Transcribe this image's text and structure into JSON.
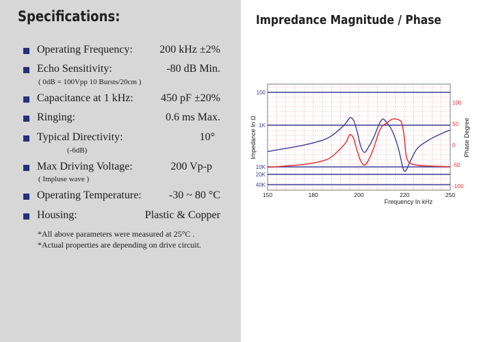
{
  "spec_title": "Specifications:",
  "specs": [
    {
      "label": "Operating Frequency:",
      "value": "200 kHz ±2%"
    },
    {
      "label": "Echo Sensitivity:",
      "value": "-80 dB Min.",
      "note": "( 0dB = 100Vpp 10 Bursts/20cm )"
    },
    {
      "label": "Capacitance at 1 kHz:",
      "value": "450 pF ±20%"
    },
    {
      "label": "Ringing:",
      "value": "0.6 ms Max."
    },
    {
      "label": "Typical Directivity:",
      "value": "10°",
      "note": "(-6dB)"
    },
    {
      "label": "Max Driving Voltage:",
      "value": "200 Vp-p",
      "note": "( Impluse wave )"
    },
    {
      "label": "Operating Temperature:",
      "value": "-30 ~ 80 °C"
    },
    {
      "label": "Housing:",
      "value": "Plastic & Copper"
    }
  ],
  "footnotes": [
    "*All above parameters were measured at 25°C .",
    "*Actual properties are depending on drive circuit."
  ],
  "colors": {
    "bullet": "#27307a",
    "left_panel": "#d7d7d7",
    "impedance_line": "#3a3f97",
    "phase_line": "#e8262b",
    "grid_major": "#3a3f97",
    "grid_minor": "#e39aa0"
  },
  "chart_data": {
    "type": "line",
    "title": "Impredance Magnitude / Phase",
    "xlabel": "Frequency In kHz",
    "ylabel_left": "Impedance In Ω",
    "ylabel_right": "Phase Degree",
    "xlim": [
      150,
      250
    ],
    "x_ticks": [
      "150",
      "180",
      "200",
      "220",
      "250"
    ],
    "left_axis_scale": "log",
    "left_ticks": [
      "100",
      "1K",
      "10K",
      "20K",
      "40K"
    ],
    "right_ticks": [
      "100",
      "50",
      "0",
      "-50",
      "-100"
    ],
    "right_ylim": [
      -100,
      150
    ],
    "grid": true,
    "series": [
      {
        "axis": "left",
        "x": [
          150,
          160,
          170,
          180,
          185,
          190,
          193,
          195,
          197,
          199,
          201,
          203,
          205,
          208,
          211,
          213,
          215,
          218,
          221,
          223,
          224,
          225,
          226,
          228,
          232,
          238,
          245,
          250
        ],
        "y": [
          4300,
          3600,
          3000,
          2300,
          1800,
          1200,
          850,
          600,
          700,
          1400,
          3200,
          4500,
          3500,
          2000,
          950,
          650,
          800,
          1300,
          2900,
          6500,
          10500,
          15000,
          13000,
          7500,
          3600,
          2300,
          1600,
          1300
        ]
      },
      {
        "axis": "right",
        "x": [
          150,
          160,
          170,
          180,
          185,
          190,
          193,
          195,
          197,
          199,
          201,
          203,
          205,
          208,
          211,
          213,
          215,
          218,
          221,
          223,
          224,
          225,
          226,
          228,
          232,
          238,
          245,
          250
        ],
        "y": [
          -55,
          -52,
          -48,
          -40,
          -30,
          -10,
          5,
          23,
          15,
          -15,
          -40,
          -50,
          -40,
          -10,
          30,
          45,
          50,
          60,
          60,
          55,
          40,
          10,
          -30,
          -45,
          -50,
          -52,
          -53,
          -54
        ]
      }
    ]
  }
}
